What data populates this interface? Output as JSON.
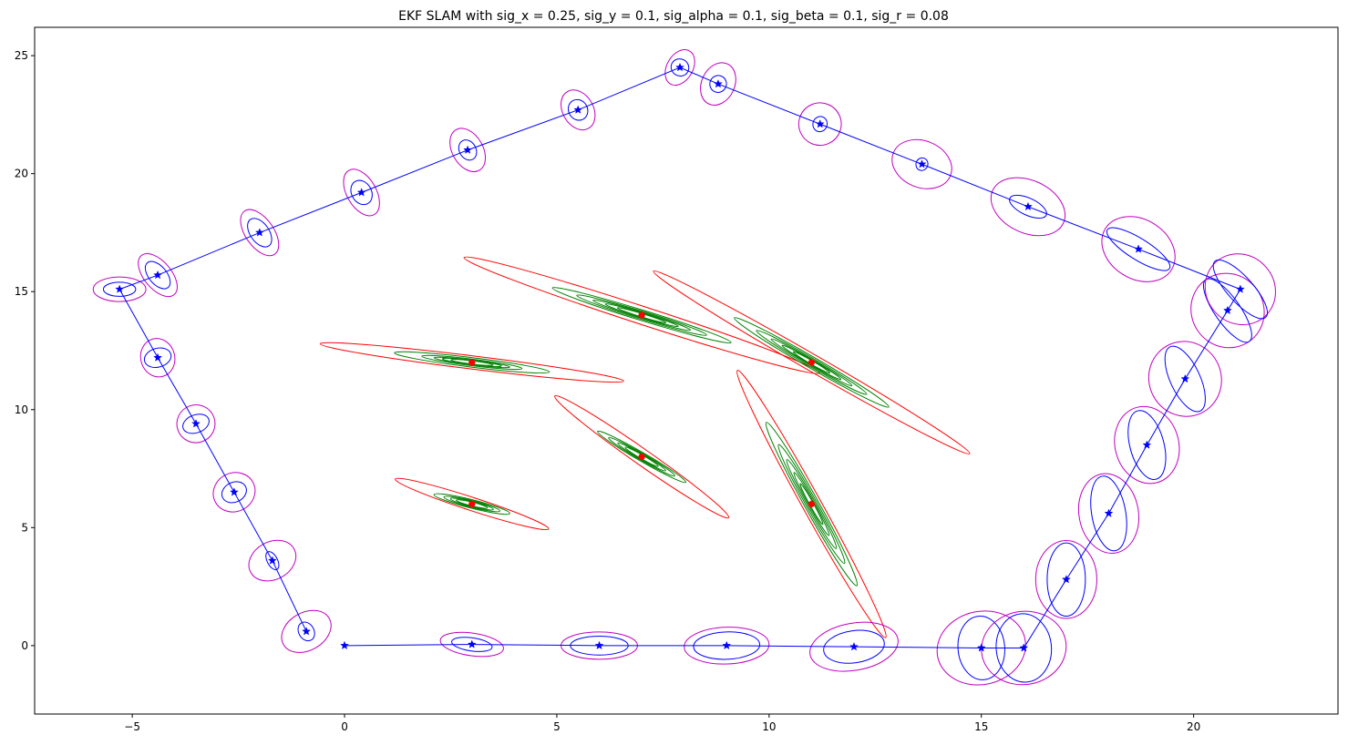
{
  "chart_data": {
    "type": "scatter",
    "title": "EKF SLAM with sig_x = 0.25, sig_y = 0.1, sig_alpha = 0.1, sig_beta = 0.1, sig_r = 0.08",
    "xlabel": "",
    "ylabel": "",
    "xlim": [
      -7.3,
      23.4
    ],
    "ylim": [
      -2.9,
      26.2
    ],
    "x_ticks": [
      -5,
      0,
      5,
      10,
      15,
      20
    ],
    "x_tick_labels": [
      "−5",
      "0",
      "5",
      "10",
      "15",
      "20"
    ],
    "y_ticks": [
      0,
      5,
      10,
      15,
      20,
      25
    ],
    "y_tick_labels": [
      "0",
      "5",
      "10",
      "15",
      "20",
      "25"
    ],
    "grid": false,
    "colors": {
      "trajectory": "#0000ff",
      "pose_cov_estimate": "#0000ff",
      "pose_cov_outer": "#bf00bf",
      "landmark_initial_cov": "#ff0000",
      "landmark_updated_cov": "#008000",
      "landmark_point": "#ff0000"
    },
    "series": [
      {
        "marker": "star",
        "color": "#0000ff",
        "x": [
          0,
          3,
          6,
          9,
          12,
          15,
          16,
          17,
          18,
          18.9,
          19.8,
          20.8,
          21.1,
          18.7,
          16.1,
          13.6,
          11.2,
          8.8,
          7.9,
          5.5,
          2.9,
          0.4,
          -2.0,
          -4.4,
          -5.3,
          -4.4,
          -3.5,
          -2.6,
          -1.7,
          -0.9
        ],
        "y": [
          0,
          0.05,
          0,
          0,
          -0.05,
          -0.1,
          -0.1,
          2.8,
          5.6,
          8.5,
          11.3,
          14.2,
          15.1,
          16.8,
          18.6,
          20.4,
          22.1,
          23.8,
          24.5,
          22.7,
          21.0,
          19.2,
          17.5,
          15.7,
          15.1,
          12.2,
          9.4,
          6.5,
          3.6,
          0.6
        ]
      },
      {
        "marker": "circle",
        "color": "#ff0000",
        "x": [
          3,
          7,
          11,
          3,
          7,
          11
        ],
        "y": [
          12,
          14,
          12,
          6,
          8,
          6
        ]
      }
    ],
    "pose_ellipses": [
      {
        "x": 3,
        "y": 0.05,
        "outer": [
          0.75,
          0.48,
          -8
        ],
        "inner": [
          0.48,
          0.28,
          -8
        ]
      },
      {
        "x": 6,
        "y": 0,
        "outer": [
          0.9,
          0.58,
          0
        ],
        "inner": [
          0.68,
          0.4,
          0
        ]
      },
      {
        "x": 9,
        "y": 0,
        "outer": [
          1.0,
          0.78,
          2
        ],
        "inner": [
          0.78,
          0.58,
          2
        ]
      },
      {
        "x": 12,
        "y": -0.05,
        "outer": [
          1.05,
          1.0,
          10
        ],
        "inner": [
          0.72,
          0.68,
          8
        ]
      },
      {
        "x": 15,
        "y": -0.1,
        "outer": [
          1.05,
          1.55,
          12
        ],
        "inner": [
          0.55,
          1.35,
          5
        ]
      },
      {
        "x": 16,
        "y": -0.1,
        "outer": [
          1.0,
          1.55,
          8
        ],
        "inner": [
          0.65,
          1.45,
          5
        ]
      },
      {
        "x": 17,
        "y": 2.8,
        "outer": [
          0.72,
          1.65,
          0
        ],
        "inner": [
          0.45,
          1.55,
          0
        ]
      },
      {
        "x": 18,
        "y": 5.6,
        "outer": [
          0.7,
          1.7,
          10
        ],
        "inner": [
          0.4,
          1.6,
          10
        ]
      },
      {
        "x": 18.9,
        "y": 8.5,
        "outer": [
          0.75,
          1.65,
          15
        ],
        "inner": [
          0.4,
          1.5,
          15
        ]
      },
      {
        "x": 19.8,
        "y": 11.3,
        "outer": [
          0.85,
          1.6,
          25
        ],
        "inner": [
          0.35,
          1.5,
          25
        ]
      },
      {
        "x": 20.8,
        "y": 14.2,
        "outer": [
          0.85,
          1.6,
          35
        ],
        "inner": [
          0.3,
          1.6,
          35
        ]
      },
      {
        "x": 21.1,
        "y": 15.1,
        "outer": [
          0.8,
          1.55,
          42
        ],
        "inner": [
          0.3,
          1.6,
          42
        ]
      },
      {
        "x": 18.7,
        "y": 16.8,
        "outer": [
          0.7,
          1.65,
          58
        ],
        "inner": [
          0.25,
          1.55,
          58
        ]
      },
      {
        "x": 16.1,
        "y": 18.6,
        "outer": [
          0.62,
          1.65,
          65
        ],
        "inner": [
          0.2,
          0.85,
          65
        ]
      },
      {
        "x": 13.6,
        "y": 20.4,
        "outer": [
          0.55,
          1.3,
          68
        ],
        "inner": [
          0.15,
          0.25,
          68
        ]
      },
      {
        "x": 11.2,
        "y": 22.1,
        "outer": [
          0.5,
          0.9,
          70
        ],
        "inner": [
          0.18,
          0.3,
          70
        ]
      },
      {
        "x": 8.8,
        "y": 23.8,
        "outer": [
          0.52,
          0.7,
          65
        ],
        "inner": [
          0.2,
          0.35,
          65
        ]
      },
      {
        "x": 7.9,
        "y": 24.5,
        "outer": [
          0.45,
          0.55,
          60
        ],
        "inner": [
          0.2,
          0.38,
          60
        ]
      },
      {
        "x": 5.5,
        "y": 22.7,
        "outer": [
          0.5,
          0.65,
          -60
        ],
        "inner": [
          0.25,
          0.4,
          -60
        ]
      },
      {
        "x": 2.9,
        "y": 21.0,
        "outer": [
          0.55,
          0.65,
          -60
        ],
        "inner": [
          0.25,
          0.35,
          -60
        ]
      },
      {
        "x": 0.4,
        "y": 19.2,
        "outer": [
          0.6,
          0.62,
          -60
        ],
        "inner": [
          0.3,
          0.42,
          -60
        ]
      },
      {
        "x": -2.0,
        "y": 17.5,
        "outer": [
          0.62,
          0.6,
          -55
        ],
        "inner": [
          0.38,
          0.4,
          -55
        ]
      },
      {
        "x": -4.4,
        "y": 15.7,
        "outer": [
          0.6,
          0.58,
          -50
        ],
        "inner": [
          0.38,
          0.38,
          -50
        ]
      },
      {
        "x": -5.3,
        "y": 15.1,
        "outer": [
          0.62,
          0.52,
          0
        ],
        "inner": [
          0.38,
          0.3,
          0
        ]
      },
      {
        "x": -4.4,
        "y": 12.2,
        "outer": [
          0.4,
          0.82,
          15
        ],
        "inner": [
          0.32,
          0.4,
          15
        ]
      },
      {
        "x": -3.5,
        "y": 9.4,
        "outer": [
          0.45,
          0.8,
          20
        ],
        "inner": [
          0.32,
          0.38,
          20
        ]
      },
      {
        "x": -2.6,
        "y": 6.5,
        "outer": [
          0.5,
          0.82,
          25
        ],
        "inner": [
          0.3,
          0.42,
          25
        ]
      },
      {
        "x": -1.7,
        "y": 3.6,
        "outer": [
          0.58,
          0.8,
          28
        ],
        "inner": [
          0.12,
          0.42,
          28
        ]
      },
      {
        "x": -0.9,
        "y": 0.6,
        "outer": [
          0.62,
          0.8,
          30
        ],
        "inner": [
          0.18,
          0.42,
          30
        ]
      }
    ],
    "landmark_ellipses": [
      {
        "x": 3,
        "y": 12,
        "red": [
          3.6,
          0.28,
          -7
        ],
        "green": [
          [
            1.84,
            0.2,
            -7
          ],
          [
            1.19,
            0.14,
            -7
          ],
          [
            0.9,
            0.1,
            -7
          ],
          [
            0.7,
            0.09,
            -7
          ],
          [
            0.5,
            0.07,
            -7
          ]
        ]
      },
      {
        "x": 7,
        "y": 14,
        "red": [
          4.4,
          0.38,
          -18
        ],
        "green": [
          [
            2.2,
            0.22,
            -17
          ],
          [
            1.6,
            0.17,
            -17
          ],
          [
            1.2,
            0.13,
            -17
          ],
          [
            0.9,
            0.1,
            -17
          ],
          [
            0.6,
            0.07,
            -17
          ]
        ]
      },
      {
        "x": 11,
        "y": 12,
        "red": [
          4.3,
          0.35,
          -30
        ],
        "green": [
          [
            2.1,
            0.24,
            -30
          ],
          [
            1.5,
            0.18,
            -30
          ],
          [
            1.1,
            0.13,
            -30
          ],
          [
            0.8,
            0.1,
            -30
          ],
          [
            0.5,
            0.07,
            -30
          ]
        ]
      },
      {
        "x": 3,
        "y": 6,
        "red": [
          1.9,
          0.28,
          -18
        ],
        "green": [
          [
            0.92,
            0.18,
            -14
          ],
          [
            0.68,
            0.14,
            -14
          ],
          [
            0.52,
            0.11,
            -14
          ],
          [
            0.38,
            0.08,
            -14
          ]
        ]
      },
      {
        "x": 7,
        "y": 8,
        "red": [
          2.5,
          0.34,
          -35
        ],
        "green": [
          [
            1.2,
            0.18,
            -30
          ],
          [
            0.9,
            0.14,
            -30
          ],
          [
            0.65,
            0.11,
            -30
          ],
          [
            0.45,
            0.08,
            -30
          ]
        ]
      },
      {
        "x": 11,
        "y": 6,
        "red": [
          3.6,
          0.4,
          -61
        ],
        "green": [
          [
            2.2,
            0.3,
            -61
          ],
          [
            1.6,
            0.23,
            -61
          ],
          [
            1.2,
            0.17,
            -61
          ],
          [
            0.85,
            0.12,
            -61
          ],
          [
            0.55,
            0.08,
            -61
          ]
        ]
      }
    ]
  }
}
